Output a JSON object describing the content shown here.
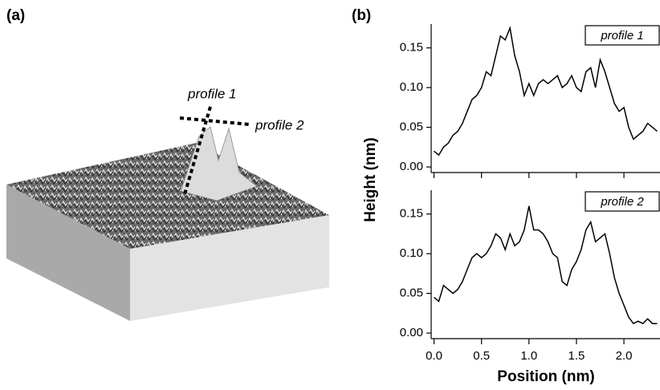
{
  "panels": {
    "a": {
      "label": "(a)",
      "annotations": [
        "profile 1",
        "profile 2"
      ]
    },
    "b": {
      "label": "(b)"
    }
  },
  "shared_axes": {
    "ylabel": "Height  (nm)",
    "xlabel": "Position  (nm)"
  },
  "chart_data": [
    {
      "type": "line",
      "x": [
        0,
        0.05,
        0.1,
        0.15,
        0.2,
        0.25,
        0.3,
        0.35,
        0.4,
        0.45,
        0.5,
        0.55,
        0.6,
        0.65,
        0.7,
        0.75,
        0.8,
        0.85,
        0.9,
        0.95,
        1.0,
        1.05,
        1.1,
        1.15,
        1.2,
        1.25,
        1.3,
        1.35,
        1.4,
        1.45,
        1.5,
        1.55,
        1.6,
        1.65,
        1.7,
        1.75,
        1.8,
        1.85,
        1.9,
        1.95,
        2.0,
        2.05,
        2.1,
        2.15,
        2.2,
        2.25,
        2.3,
        2.35
      ],
      "series": [
        {
          "name": "profile 1",
          "color": "#000000",
          "values": [
            0.02,
            0.015,
            0.025,
            0.03,
            0.04,
            0.045,
            0.055,
            0.07,
            0.085,
            0.09,
            0.1,
            0.12,
            0.115,
            0.14,
            0.165,
            0.16,
            0.175,
            0.14,
            0.12,
            0.09,
            0.105,
            0.09,
            0.105,
            0.11,
            0.105,
            0.11,
            0.115,
            0.1,
            0.105,
            0.115,
            0.1,
            0.095,
            0.12,
            0.125,
            0.1,
            0.135,
            0.12,
            0.1,
            0.08,
            0.07,
            0.075,
            0.05,
            0.035,
            0.04,
            0.045,
            0.055,
            0.05,
            0.045
          ]
        }
      ],
      "xlim": [
        -0.03,
        2.38
      ],
      "ylim": [
        -0.007,
        0.18
      ],
      "xticks": [
        0,
        0.5,
        1,
        1.5,
        2
      ],
      "show_xtick_labels": false,
      "yticks": [
        {
          "value": 0,
          "label": "0.00"
        },
        {
          "value": 0.05,
          "label": "0.05"
        },
        {
          "value": 0.1,
          "label": "0.10"
        },
        {
          "value": 0.15,
          "label": "0.15"
        }
      ],
      "legend": "upper right"
    },
    {
      "type": "line",
      "x": [
        0,
        0.05,
        0.1,
        0.15,
        0.2,
        0.25,
        0.3,
        0.35,
        0.4,
        0.45,
        0.5,
        0.55,
        0.6,
        0.65,
        0.7,
        0.75,
        0.8,
        0.85,
        0.9,
        0.95,
        1.0,
        1.05,
        1.1,
        1.15,
        1.2,
        1.25,
        1.3,
        1.35,
        1.4,
        1.45,
        1.5,
        1.55,
        1.6,
        1.65,
        1.7,
        1.75,
        1.8,
        1.85,
        1.9,
        1.95,
        2.0,
        2.05,
        2.1,
        2.15,
        2.2,
        2.25,
        2.3,
        2.35
      ],
      "series": [
        {
          "name": "profile 2",
          "color": "#000000",
          "values": [
            0.045,
            0.04,
            0.06,
            0.055,
            0.05,
            0.055,
            0.065,
            0.08,
            0.095,
            0.1,
            0.095,
            0.1,
            0.11,
            0.125,
            0.12,
            0.105,
            0.125,
            0.11,
            0.115,
            0.13,
            0.16,
            0.13,
            0.13,
            0.125,
            0.115,
            0.1,
            0.095,
            0.065,
            0.06,
            0.08,
            0.09,
            0.105,
            0.13,
            0.14,
            0.115,
            0.12,
            0.125,
            0.1,
            0.07,
            0.05,
            0.035,
            0.02,
            0.012,
            0.015,
            0.012,
            0.018,
            0.012,
            0.012
          ]
        }
      ],
      "xlim": [
        -0.03,
        2.38
      ],
      "ylim": [
        -0.007,
        0.18
      ],
      "xticks": [
        {
          "value": 0,
          "label": "0.0"
        },
        {
          "value": 0.5,
          "label": "0.5"
        },
        {
          "value": 1,
          "label": "1.0"
        },
        {
          "value": 1.5,
          "label": "1.5"
        },
        {
          "value": 2,
          "label": "2.0"
        }
      ],
      "show_xtick_labels": true,
      "yticks": [
        {
          "value": 0,
          "label": "0.00"
        },
        {
          "value": 0.05,
          "label": "0.05"
        },
        {
          "value": 0.1,
          "label": "0.10"
        },
        {
          "value": 0.15,
          "label": "0.15"
        }
      ],
      "legend": "upper right"
    }
  ]
}
